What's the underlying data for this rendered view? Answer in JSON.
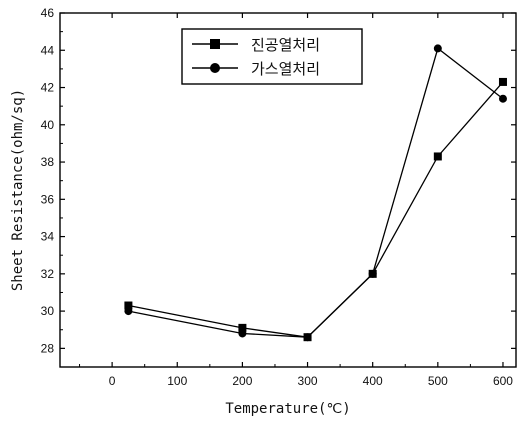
{
  "chart_data": {
    "type": "line",
    "title": "",
    "xlabel": "Temperature(℃)",
    "ylabel": "Sheet Resistance(ohm/sq)",
    "xlim": [
      -80,
      620
    ],
    "ylim": [
      27,
      46
    ],
    "x_ticks": [
      0,
      100,
      200,
      300,
      400,
      500,
      600
    ],
    "y_ticks": [
      28,
      30,
      32,
      34,
      36,
      38,
      40,
      42,
      44,
      46
    ],
    "grid": false,
    "legend_position": "top-center",
    "series": [
      {
        "name": "진공열처리",
        "marker": "square",
        "points": [
          [
            25,
            30.3
          ],
          [
            200,
            29.1
          ],
          [
            300,
            28.6
          ],
          [
            400,
            32.0
          ],
          [
            500,
            38.3
          ],
          [
            600,
            42.3
          ]
        ]
      },
      {
        "name": "가스열처리",
        "marker": "circle",
        "points": [
          [
            25,
            30.0
          ],
          [
            200,
            28.8
          ],
          [
            300,
            28.6
          ],
          [
            400,
            32.0
          ],
          [
            500,
            44.1
          ],
          [
            600,
            41.4
          ]
        ]
      }
    ]
  }
}
